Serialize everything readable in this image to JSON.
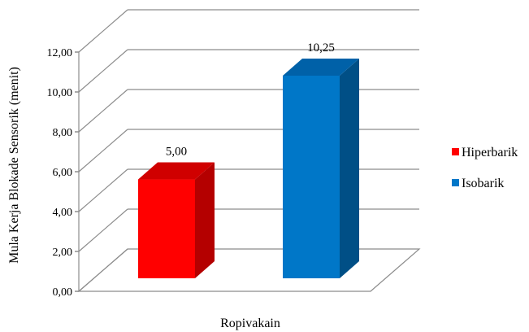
{
  "chart_data": {
    "type": "bar",
    "categories": [
      "Ropivakain"
    ],
    "series": [
      {
        "name": "Hiperbarik",
        "values": [
          5.0
        ],
        "color": "#ff0000",
        "side_color": "#b40000",
        "top_color": "#d00000",
        "label": "5,00"
      },
      {
        "name": "Isobarik",
        "values": [
          10.25
        ],
        "color": "#0077c8",
        "side_color": "#004f86",
        "top_color": "#0061a8",
        "label": "10,25"
      }
    ],
    "ylabel": "Mula Kerja Blokade Sensorik (menit)",
    "xlabel": "",
    "ylim": [
      0,
      12
    ],
    "yticks": [
      0,
      2,
      4,
      6,
      8,
      10,
      12
    ],
    "ytick_labels": [
      "0,00",
      "2,00",
      "4,00",
      "6,00",
      "8,00",
      "10,00",
      "12,00"
    ],
    "grid": true,
    "legend_position": "right",
    "three_d": true
  }
}
